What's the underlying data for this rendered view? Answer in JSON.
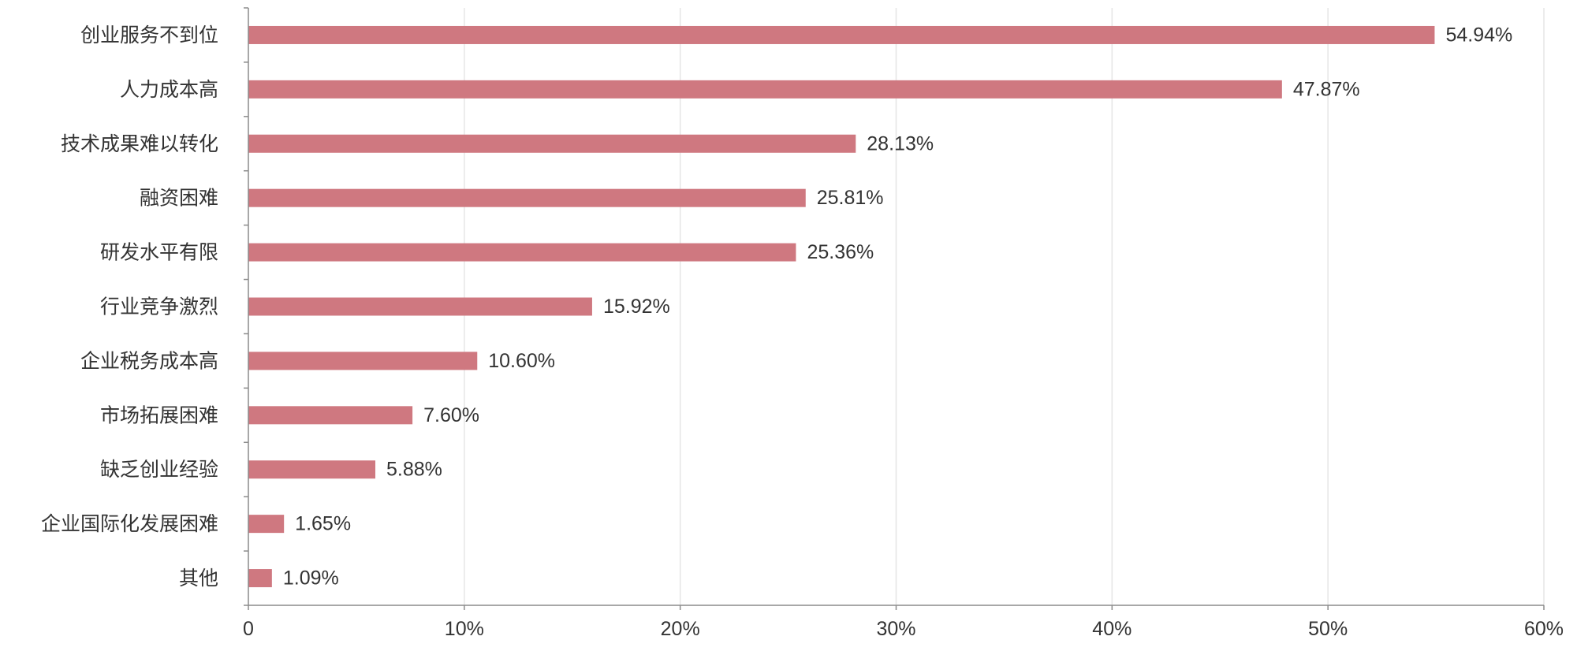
{
  "chart_data": {
    "type": "bar",
    "orientation": "horizontal",
    "categories": [
      "创业服务不到位",
      "人力成本高",
      "技术成果难以转化",
      "融资困难",
      "研发水平有限",
      "行业竞争激烈",
      "企业税务成本高",
      "市场拓展困难",
      "缺乏创业经验",
      "企业国际化发展困难",
      "其他"
    ],
    "values": [
      54.94,
      47.87,
      28.13,
      25.81,
      25.36,
      15.92,
      10.6,
      7.6,
      5.88,
      1.65,
      1.09
    ],
    "value_labels": [
      "54.94%",
      "47.87%",
      "28.13%",
      "25.81%",
      "25.36%",
      "15.92%",
      "10.60%",
      "7.60%",
      "5.88%",
      "1.65%",
      "1.09%"
    ],
    "x_ticks": [
      0,
      10,
      20,
      30,
      40,
      50,
      60
    ],
    "x_tick_labels": [
      "0",
      "10%",
      "20%",
      "30%",
      "40%",
      "50%",
      "60%"
    ],
    "xlim": [
      0,
      60
    ],
    "grid": "vertical",
    "colors": {
      "bar": "#cf7880"
    }
  }
}
